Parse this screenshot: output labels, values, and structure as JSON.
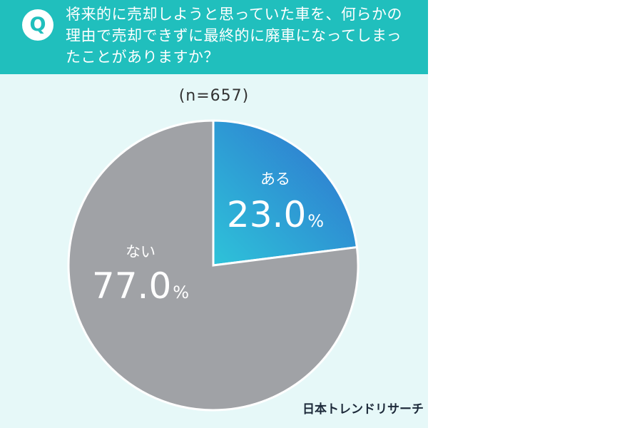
{
  "header": {
    "badge": "Q",
    "question_lines": [
      "将来的に売却しようと思っていた車を、何らかの",
      "理由で売却できずに最終的に廃車になってしまっ",
      "たことがありますか？"
    ]
  },
  "sample_note": "(n=657)",
  "brand": "日本トレンドリサーチ",
  "colors": {
    "header_bg": "#20bfbd",
    "panel_bg": "#e6f8f8",
    "yes_gradient_start": "#2ec3d9",
    "yes_gradient_end": "#2f6fcf",
    "no_slice": "#a0a2a6"
  },
  "chart_data": {
    "type": "pie",
    "title": "将来的に売却しようと思っていた車を、何らかの理由で売却できずに最終的に廃車になってしまったことがありますか？",
    "start": "12 o'clock, clockwise",
    "slices": [
      {
        "label": "ある",
        "value": 23.0,
        "display": "23.0",
        "unit": "%"
      },
      {
        "label": "ない",
        "value": 77.0,
        "display": "77.0",
        "unit": "%"
      }
    ]
  }
}
